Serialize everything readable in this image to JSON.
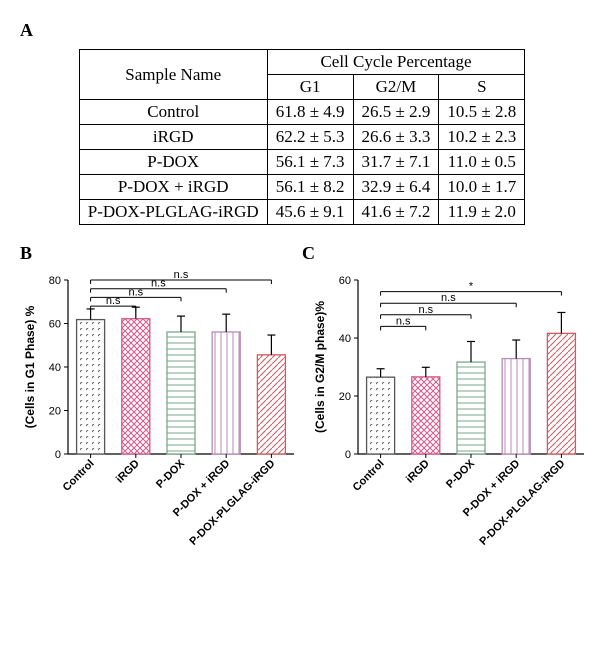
{
  "panelA": {
    "label": "A",
    "table": {
      "header_group": "Cell Cycle Percentage",
      "sample_header": "Sample Name",
      "columns": [
        "G1",
        "G2/M",
        "S"
      ],
      "rows": [
        {
          "name": "Control",
          "g1": "61.8 ± 4.9",
          "g2m": "26.5 ± 2.9",
          "s": "10.5 ± 2.8"
        },
        {
          "name": "iRGD",
          "g1": "62.2 ± 5.3",
          "g2m": "26.6 ± 3.3",
          "s": "10.2 ± 2.3"
        },
        {
          "name": "P-DOX",
          "g1": "56.1 ± 7.3",
          "g2m": "31.7 ± 7.1",
          "s": "11.0 ± 0.5"
        },
        {
          "name": "P-DOX + iRGD",
          "g1": "56.1 ± 8.2",
          "g2m": "32.9 ± 6.4",
          "s": "10.0 ± 1.7"
        },
        {
          "name": "P-DOX-PLGLAG-iRGD",
          "g1": "45.6 ± 9.1",
          "g2m": "41.6 ± 7.2",
          "s": "11.9 ± 2.0"
        }
      ]
    }
  },
  "chart_common": {
    "categories": [
      "Control",
      "iRGD",
      "P-DOX",
      "P-DOX + iRGD",
      "P-DOX-PLGLAG-iRGD"
    ],
    "bar_series": [
      {
        "fill": "#575656",
        "hatch": "backslash",
        "stroke": "#575656"
      },
      {
        "fill": "#d6588a",
        "hatch": "cross",
        "stroke": "#d6588a"
      },
      {
        "fill": "#7aa88b",
        "hatch": "horiz",
        "stroke": "#7aa88b"
      },
      {
        "fill": "#b98bb7",
        "hatch": "vert",
        "stroke": "#b98bb7"
      },
      {
        "fill": "#cf5a5f",
        "hatch": "diag",
        "stroke": "#cf5a5f"
      }
    ],
    "bar_width": 0.62,
    "axis_color": "#000000",
    "tick_fontsize": 11,
    "label_fontsize": 12,
    "annot_fontsize": 11,
    "background": "#ffffff"
  },
  "panelB": {
    "label": "B",
    "ylabel": "(Cells in G1 Phase) %",
    "ylim": [
      0,
      80
    ],
    "ytick_step": 20,
    "values": [
      61.8,
      62.2,
      56.1,
      56.1,
      45.6
    ],
    "errors": [
      4.9,
      5.3,
      7.3,
      8.2,
      9.1
    ],
    "annotations": [
      {
        "to": 1,
        "label": "n.s",
        "y": 68
      },
      {
        "to": 2,
        "label": "n.s",
        "y": 72
      },
      {
        "to": 3,
        "label": "n.s",
        "y": 76
      },
      {
        "to": 4,
        "label": "n.s",
        "y": 80
      }
    ]
  },
  "panelC": {
    "label": "C",
    "ylabel": "(Cells in G2/M phase)%",
    "ylim": [
      0,
      60
    ],
    "ytick_step": 20,
    "values": [
      26.5,
      26.6,
      31.7,
      32.9,
      41.6
    ],
    "errors": [
      2.9,
      3.3,
      7.1,
      6.4,
      7.2
    ],
    "annotations": [
      {
        "to": 1,
        "label": "n.s",
        "y": 44
      },
      {
        "to": 2,
        "label": "n.s",
        "y": 48
      },
      {
        "to": 3,
        "label": "n.s",
        "y": 52
      },
      {
        "to": 4,
        "label": "*",
        "y": 56
      }
    ]
  }
}
